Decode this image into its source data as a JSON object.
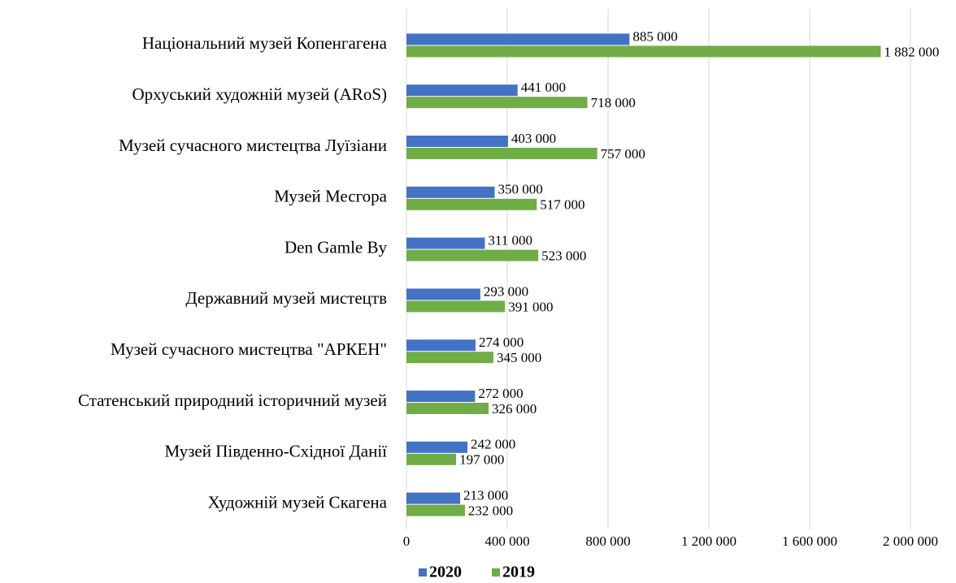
{
  "chart_data": {
    "type": "bar",
    "orientation": "horizontal",
    "categories": [
      "Національний музей Копенгагена",
      "Орхуський художній музей (ARoS)",
      "Музей сучасного мистецтва Луїзіани",
      "Музей Месгора",
      "Den Gamle By",
      "Державний музей мистецтв",
      "Музей сучасного мистецтва \"АРКЕН\"",
      "Статенський природний історичний музей",
      "Музей Південно-Східної Данії",
      "Художній музей Скагена"
    ],
    "series": [
      {
        "name": "2020",
        "color": "#4472c4",
        "values": [
          885000,
          441000,
          403000,
          350000,
          311000,
          293000,
          274000,
          272000,
          242000,
          213000
        ],
        "value_labels": [
          "885 000",
          "441 000",
          "403 000",
          "350 000",
          "311 000",
          "293 000",
          "274 000",
          "272 000",
          "242 000",
          "213 000"
        ]
      },
      {
        "name": "2019",
        "color": "#70ad47",
        "values": [
          1882000,
          718000,
          757000,
          517000,
          523000,
          391000,
          345000,
          326000,
          197000,
          232000
        ],
        "value_labels": [
          "1 882 000",
          "718 000",
          "757 000",
          "517 000",
          "523 000",
          "391 000",
          "345 000",
          "326 000",
          "197 000",
          "232 000"
        ]
      }
    ],
    "xlim": [
      0,
      2000000
    ],
    "xticks": [
      0,
      {
        "value": 400000,
        "label": "400 000"
      },
      {
        "value": 800000,
        "label": "800 000"
      },
      {
        "value": 1200000,
        "label": "1 200 000"
      },
      {
        "value": 1600000,
        "label": "1 600 000"
      },
      {
        "value": 2000000,
        "label": "2 000 000"
      }
    ],
    "grid": true,
    "legend": "bottom"
  }
}
